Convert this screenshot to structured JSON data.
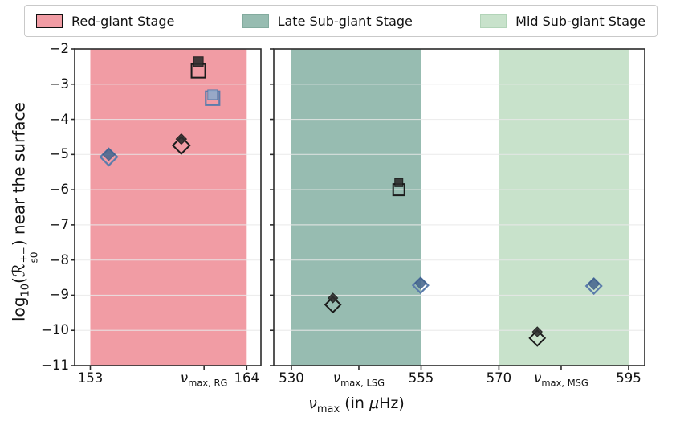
{
  "legend": {
    "items": [
      {
        "label": "Red-giant Stage",
        "color": "#f19ca4",
        "edge": "#e48era"
      },
      {
        "label": "Late Sub-giant Stage",
        "color": "#97bcb1",
        "edge": "#83ab9e"
      },
      {
        "label": "Mid Sub-giant Stage",
        "color": "#c8e2cb",
        "edge": "#b2d4b8"
      }
    ]
  },
  "chart_data": {
    "type": "scatter",
    "title": "",
    "xlabel": {
      "base": "ν",
      "sub": "max",
      "rest1": " (in ",
      "mu": "μ",
      "rest2": "Hz)"
    },
    "ylabel": {
      "prefix": "log",
      "prefix_sub": "10",
      "open": "(",
      "symbol": "ℛ",
      "sym_sup": "+−",
      "sym_sub": "s0",
      "close": ")",
      "rest": " near the surface"
    },
    "ylim": [
      -11,
      -2
    ],
    "grid": true,
    "legend_position": "top",
    "yticks": [
      {
        "value": -2,
        "label": "−2"
      },
      {
        "value": -3,
        "label": "−3"
      },
      {
        "value": -4,
        "label": "−4"
      },
      {
        "value": -5,
        "label": "−5"
      },
      {
        "value": -6,
        "label": "−6"
      },
      {
        "value": -7,
        "label": "−7"
      },
      {
        "value": -8,
        "label": "−8"
      },
      {
        "value": -9,
        "label": "−9"
      },
      {
        "value": -10,
        "label": "−10"
      },
      {
        "value": -11,
        "label": "−11"
      }
    ],
    "colors": {
      "grid": "#e9e9e9",
      "spine": "#2b2b2b"
    },
    "marker_styles": {
      "open-dark": {
        "fill": "none",
        "stroke": "#1b1b1b",
        "sw": 2.0
      },
      "filled-dark": {
        "fill": "#2e2e2e",
        "stroke": "#141414",
        "sw": 1.0,
        "opacity": 0.9
      },
      "open-blue": {
        "fill": "none",
        "stroke": "#5b7cab",
        "sw": 2.2
      },
      "filled-blue": {
        "fill": "#47678f",
        "stroke": "#3c5c88",
        "sw": 1.0,
        "opacity": 0.88
      },
      "filled-blue-light": {
        "fill": "#94a9c9",
        "stroke": "#5b7cab",
        "sw": 1.0,
        "opacity": 0.95
      }
    },
    "panels": [
      {
        "name": "red-giant-panel",
        "xlim": [
          151.9,
          165.0
        ],
        "bands": [
          {
            "stage": "Red-giant Stage",
            "from": 153,
            "to": 164,
            "color": "#f19ca4"
          }
        ],
        "xticks": [
          {
            "value": 153,
            "label": "153"
          },
          {
            "value": 161,
            "label": "ν",
            "sub": "max, RG"
          },
          {
            "value": 164,
            "label": "164"
          }
        ],
        "points": [
          {
            "x": 160.6,
            "y": -2.62,
            "marker": "square",
            "variant": "open-dark",
            "size": 17
          },
          {
            "x": 160.6,
            "y": -2.36,
            "marker": "square",
            "variant": "filled-dark",
            "size": 12
          },
          {
            "x": 161.6,
            "y": -3.4,
            "marker": "square",
            "variant": "open-blue",
            "size": 17
          },
          {
            "x": 161.6,
            "y": -3.3,
            "marker": "square",
            "variant": "filled-blue-light",
            "size": 12
          },
          {
            "x": 159.4,
            "y": -4.74,
            "marker": "diamond",
            "variant": "open-dark",
            "size": 21
          },
          {
            "x": 159.4,
            "y": -4.56,
            "marker": "diamond",
            "variant": "filled-dark",
            "size": 13
          },
          {
            "x": 154.3,
            "y": -5.07,
            "marker": "diamond",
            "variant": "open-blue",
            "size": 21
          },
          {
            "x": 154.3,
            "y": -5.0,
            "marker": "diamond",
            "variant": "filled-blue",
            "size": 15
          }
        ]
      },
      {
        "name": "sub-giant-panel",
        "xlim": [
          526.6,
          598.1
        ],
        "bands": [
          {
            "stage": "Late Sub-giant Stage",
            "from": 530,
            "to": 555,
            "color": "#97bcb1"
          },
          {
            "stage": "Mid Sub-giant Stage",
            "from": 570,
            "to": 595,
            "color": "#c8e2cb"
          }
        ],
        "xticks": [
          {
            "value": 530,
            "label": "530"
          },
          {
            "value": 543,
            "label": "ν",
            "sub": "max, LSG"
          },
          {
            "value": 555,
            "label": "555"
          },
          {
            "value": 570,
            "label": "570"
          },
          {
            "value": 582,
            "label": "ν",
            "sub": "max, MSG"
          },
          {
            "value": 595,
            "label": "595"
          }
        ],
        "points": [
          {
            "x": 550.7,
            "y": -6.0,
            "marker": "square",
            "variant": "open-dark",
            "size": 14
          },
          {
            "x": 550.7,
            "y": -5.8,
            "marker": "square",
            "variant": "filled-dark",
            "size": 10
          },
          {
            "x": 538.0,
            "y": -9.27,
            "marker": "diamond",
            "variant": "open-dark",
            "size": 19
          },
          {
            "x": 538.0,
            "y": -9.08,
            "marker": "diamond",
            "variant": "filled-dark",
            "size": 12
          },
          {
            "x": 554.9,
            "y": -8.72,
            "marker": "diamond",
            "variant": "open-blue",
            "size": 19
          },
          {
            "x": 554.9,
            "y": -8.66,
            "marker": "diamond",
            "variant": "filled-blue",
            "size": 14
          },
          {
            "x": 577.4,
            "y": -10.22,
            "marker": "diamond",
            "variant": "open-dark",
            "size": 19
          },
          {
            "x": 577.4,
            "y": -10.04,
            "marker": "diamond",
            "variant": "filled-dark",
            "size": 12
          },
          {
            "x": 588.3,
            "y": -8.74,
            "marker": "diamond",
            "variant": "open-blue",
            "size": 19
          },
          {
            "x": 588.3,
            "y": -8.68,
            "marker": "diamond",
            "variant": "filled-blue",
            "size": 14
          }
        ]
      }
    ]
  }
}
